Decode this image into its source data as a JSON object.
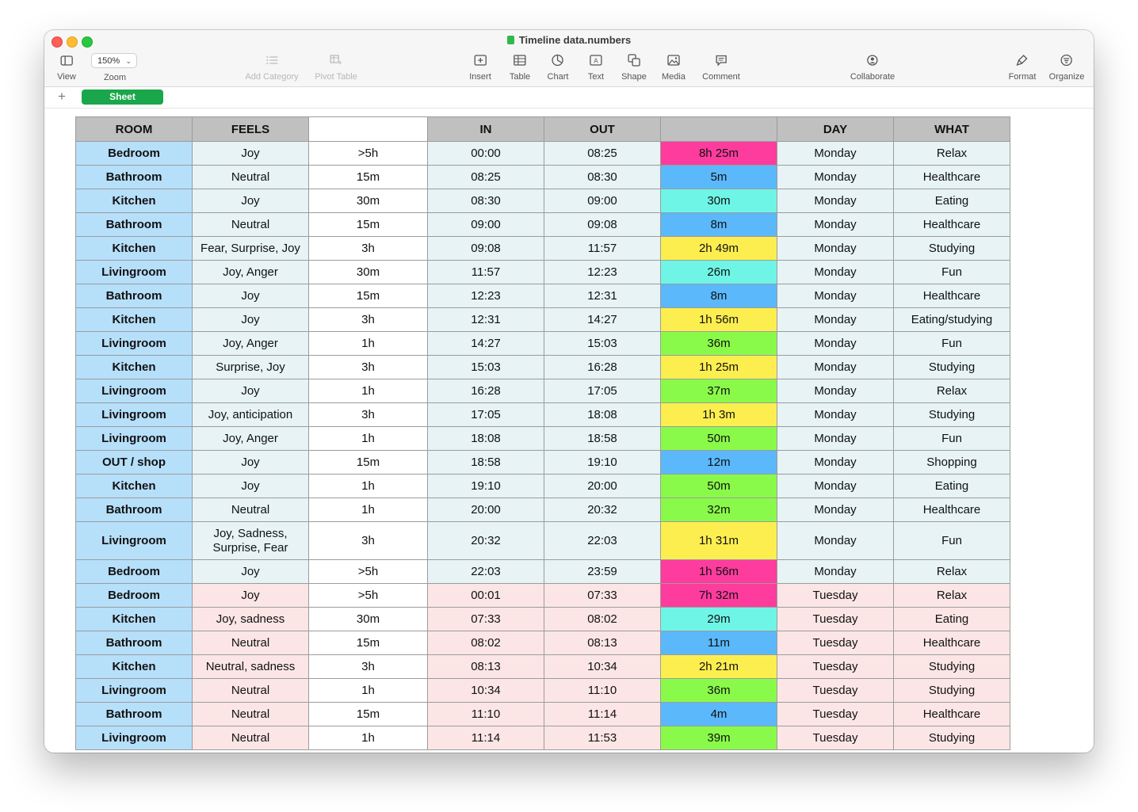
{
  "window": {
    "title": "Timeline data.numbers"
  },
  "toolbar": {
    "view_label": "View",
    "zoom_value": "150%",
    "zoom_label": "Zoom",
    "add_category_label": "Add Category",
    "pivot_table_label": "Pivot Table",
    "insert_label": "Insert",
    "table_label": "Table",
    "chart_label": "Chart",
    "text_label": "Text",
    "shape_label": "Shape",
    "media_label": "Media",
    "comment_label": "Comment",
    "collaborate_label": "Collaborate",
    "format_label": "Format",
    "organize_label": "Organize"
  },
  "sheets": {
    "add_symbol": "+",
    "active_tab": "Sheet"
  },
  "colors": {
    "room_blue": "#b6dffa",
    "monday_tint": "#e7f3f5",
    "tuesday_tint": "#fbe6e5",
    "pink": "#fd3c9e",
    "blue": "#5ab8fb",
    "cyan": "#6ff5e5",
    "yellow": "#fdee50",
    "green": "#8afa4a"
  },
  "table": {
    "headers": [
      "ROOM",
      "FEELS",
      "",
      "IN",
      "OUT",
      "",
      "DAY",
      "WHAT"
    ],
    "rows": [
      {
        "room": "Bedroom",
        "feels": "Joy",
        "range": ">5h",
        "in": "00:00",
        "out": "08:25",
        "dur": "8h 25m",
        "color": "pink",
        "day": "Monday",
        "what": "Relax"
      },
      {
        "room": "Bathroom",
        "feels": "Neutral",
        "range": "15m",
        "in": "08:25",
        "out": "08:30",
        "dur": "5m",
        "color": "blue",
        "day": "Monday",
        "what": "Healthcare"
      },
      {
        "room": "Kitchen",
        "feels": "Joy",
        "range": "30m",
        "in": "08:30",
        "out": "09:00",
        "dur": "30m",
        "color": "cyan",
        "day": "Monday",
        "what": "Eating"
      },
      {
        "room": "Bathroom",
        "feels": "Neutral",
        "range": "15m",
        "in": "09:00",
        "out": "09:08",
        "dur": "8m",
        "color": "blue",
        "day": "Monday",
        "what": "Healthcare"
      },
      {
        "room": "Kitchen",
        "feels": "Fear, Surprise, Joy",
        "range": "3h",
        "in": "09:08",
        "out": "11:57",
        "dur": "2h 49m",
        "color": "yellow",
        "day": "Monday",
        "what": "Studying"
      },
      {
        "room": "Livingroom",
        "feels": "Joy, Anger",
        "range": "30m",
        "in": "11:57",
        "out": "12:23",
        "dur": "26m",
        "color": "cyan",
        "day": "Monday",
        "what": "Fun"
      },
      {
        "room": "Bathroom",
        "feels": "Joy",
        "range": "15m",
        "in": "12:23",
        "out": "12:31",
        "dur": "8m",
        "color": "blue",
        "day": "Monday",
        "what": "Healthcare"
      },
      {
        "room": "Kitchen",
        "feels": "Joy",
        "range": "3h",
        "in": "12:31",
        "out": "14:27",
        "dur": "1h 56m",
        "color": "yellow",
        "day": "Monday",
        "what": "Eating/studying"
      },
      {
        "room": "Livingroom",
        "feels": "Joy, Anger",
        "range": "1h",
        "in": "14:27",
        "out": "15:03",
        "dur": "36m",
        "color": "green",
        "day": "Monday",
        "what": "Fun"
      },
      {
        "room": "Kitchen",
        "feels": "Surprise, Joy",
        "range": "3h",
        "in": "15:03",
        "out": "16:28",
        "dur": "1h 25m",
        "color": "yellow",
        "day": "Monday",
        "what": "Studying"
      },
      {
        "room": "Livingroom",
        "feels": "Joy",
        "range": "1h",
        "in": "16:28",
        "out": "17:05",
        "dur": "37m",
        "color": "green",
        "day": "Monday",
        "what": "Relax"
      },
      {
        "room": "Livingroom",
        "feels": "Joy, anticipation",
        "range": "3h",
        "in": "17:05",
        "out": "18:08",
        "dur": "1h 3m",
        "color": "yellow",
        "day": "Monday",
        "what": "Studying"
      },
      {
        "room": "Livingroom",
        "feels": "Joy, Anger",
        "range": "1h",
        "in": "18:08",
        "out": "18:58",
        "dur": "50m",
        "color": "green",
        "day": "Monday",
        "what": "Fun"
      },
      {
        "room": "OUT / shop",
        "feels": "Joy",
        "range": "15m",
        "in": "18:58",
        "out": "19:10",
        "dur": "12m",
        "color": "blue",
        "day": "Monday",
        "what": "Shopping"
      },
      {
        "room": "Kitchen",
        "feels": "Joy",
        "range": "1h",
        "in": "19:10",
        "out": "20:00",
        "dur": "50m",
        "color": "green",
        "day": "Monday",
        "what": "Eating"
      },
      {
        "room": "Bathroom",
        "feels": "Neutral",
        "range": "1h",
        "in": "20:00",
        "out": "20:32",
        "dur": "32m",
        "color": "green",
        "day": "Monday",
        "what": "Healthcare"
      },
      {
        "room": "Livingroom",
        "feels": "Joy, Sadness, Surprise, Fear",
        "range": "3h",
        "in": "20:32",
        "out": "22:03",
        "dur": "1h 31m",
        "color": "yellow",
        "day": "Monday",
        "what": "Fun",
        "tall": true
      },
      {
        "room": "Bedroom",
        "feels": "Joy",
        "range": ">5h",
        "in": "22:03",
        "out": "23:59",
        "dur": "1h 56m",
        "color": "pink",
        "day": "Monday",
        "what": "Relax"
      },
      {
        "room": "Bedroom",
        "feels": "Joy",
        "range": ">5h",
        "in": "00:01",
        "out": "07:33",
        "dur": "7h 32m",
        "color": "pink",
        "day": "Tuesday",
        "what": "Relax"
      },
      {
        "room": "Kitchen",
        "feels": "Joy, sadness",
        "range": "30m",
        "in": "07:33",
        "out": "08:02",
        "dur": "29m",
        "color": "cyan",
        "day": "Tuesday",
        "what": "Eating"
      },
      {
        "room": "Bathroom",
        "feels": "Neutral",
        "range": "15m",
        "in": "08:02",
        "out": "08:13",
        "dur": "11m",
        "color": "blue",
        "day": "Tuesday",
        "what": "Healthcare"
      },
      {
        "room": "Kitchen",
        "feels": "Neutral, sadness",
        "range": "3h",
        "in": "08:13",
        "out": "10:34",
        "dur": "2h 21m",
        "color": "yellow",
        "day": "Tuesday",
        "what": "Studying"
      },
      {
        "room": "Livingroom",
        "feels": "Neutral",
        "range": "1h",
        "in": "10:34",
        "out": "11:10",
        "dur": "36m",
        "color": "green",
        "day": "Tuesday",
        "what": "Studying"
      },
      {
        "room": "Bathroom",
        "feels": "Neutral",
        "range": "15m",
        "in": "11:10",
        "out": "11:14",
        "dur": "4m",
        "color": "blue",
        "day": "Tuesday",
        "what": "Healthcare"
      },
      {
        "room": "Livingroom",
        "feels": "Neutral",
        "range": "1h",
        "in": "11:14",
        "out": "11:53",
        "dur": "39m",
        "color": "green",
        "day": "Tuesday",
        "what": "Studying"
      }
    ]
  }
}
